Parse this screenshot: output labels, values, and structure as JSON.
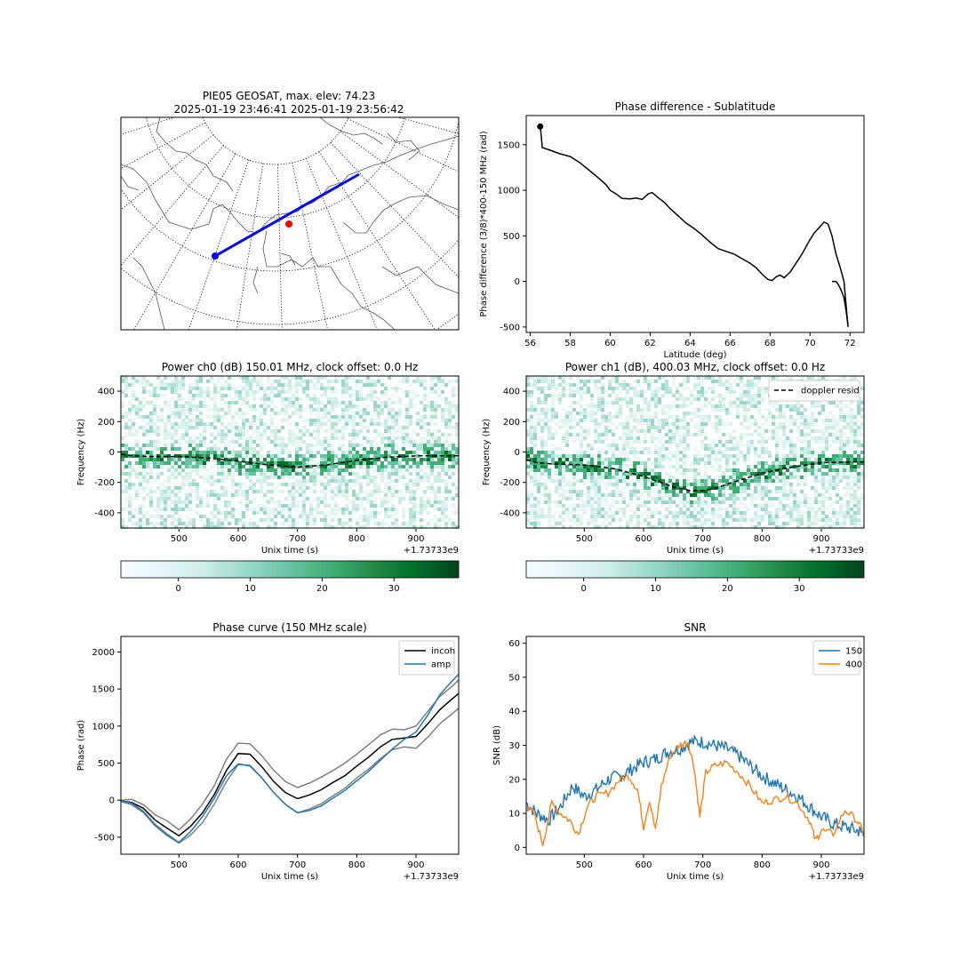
{
  "figure": {
    "map": {
      "title_line1": "PIE05 GEOSAT, max. elev: 74.23",
      "title_line2": "2025-01-19 23:46:41 2025-01-19 23:56:42"
    },
    "colorbar_ticks": [
      "0",
      "10",
      "20",
      "30"
    ],
    "colormap": [
      "#f7fcfd",
      "#e5f5f9",
      "#ccece6",
      "#99d8c9",
      "#66c2a4",
      "#41ae76",
      "#238b45",
      "#006d2c",
      "#00441b"
    ]
  },
  "chart_data": [
    {
      "type": "line",
      "title": "Phase difference - Sublatitude",
      "xlabel": "Latitude (deg)",
      "ylabel": "Phase difference (3/8)*400-150 MHz (rad)",
      "xlim": [
        55.8,
        72.7
      ],
      "ylim": [
        -560,
        1820
      ],
      "x_ticks": [
        56,
        58,
        60,
        62,
        64,
        66,
        68,
        70,
        72
      ],
      "y_ticks": [
        -500,
        0,
        500,
        1000,
        1500
      ],
      "grid": false,
      "series": [
        {
          "color": "#000000",
          "x": [
            56.5,
            56.55,
            56.6,
            57.0,
            57.5,
            58.0,
            58.5,
            59.0,
            59.5,
            59.8,
            60.0,
            60.3,
            60.6,
            61.0,
            61.3,
            61.6,
            61.9,
            62.1,
            62.4,
            62.7,
            63.0,
            63.4,
            63.8,
            64.2,
            64.6,
            65.0,
            65.4,
            65.8,
            66.2,
            66.6,
            67.0,
            67.3,
            67.6,
            67.9,
            68.1,
            68.3,
            68.5,
            68.7,
            69.0,
            69.3,
            69.6,
            69.9,
            70.2,
            70.5,
            70.7,
            70.9,
            71.1,
            71.3,
            71.5,
            71.7,
            71.9
          ],
          "y": [
            1700,
            1600,
            1470,
            1440,
            1400,
            1370,
            1300,
            1210,
            1120,
            1060,
            1000,
            960,
            910,
            905,
            915,
            900,
            960,
            975,
            920,
            870,
            800,
            720,
            640,
            580,
            510,
            430,
            360,
            330,
            300,
            250,
            200,
            150,
            80,
            20,
            10,
            50,
            70,
            40,
            100,
            200,
            300,
            420,
            530,
            600,
            650,
            630,
            500,
            300,
            160,
            0,
            -500
          ]
        },
        {
          "color": "#000000",
          "x": [
            71.1,
            71.3,
            71.4,
            71.5,
            71.6,
            71.7,
            71.8,
            71.9
          ],
          "y": [
            0,
            0,
            -30,
            -70,
            -120,
            -180,
            -320,
            -480
          ]
        }
      ],
      "marker": {
        "x": 56.5,
        "y": 1700
      }
    },
    {
      "type": "heatmap",
      "title": "Power ch0 (dB) 150.01 MHz, clock offset: 0.0 Hz",
      "xlabel": "Unix time (s)",
      "ylabel": "Frequency (Hz)",
      "x_offset_label": "+1.73733e9",
      "xlim": [
        402,
        972
      ],
      "ylim": [
        -500,
        500
      ],
      "x_ticks": [
        500,
        600,
        700,
        800,
        900
      ],
      "y_ticks": [
        -400,
        -200,
        0,
        200,
        400
      ],
      "colorbar_range": [
        -8,
        39
      ],
      "legend": "",
      "doppler_resid": {
        "x": [
          402,
          420,
          450,
          500,
          550,
          600,
          650,
          700,
          750,
          800,
          850,
          900,
          950,
          972
        ],
        "y": [
          -15,
          -25,
          -30,
          -30,
          -40,
          -60,
          -85,
          -100,
          -85,
          -55,
          -35,
          -25,
          -25,
          -25
        ]
      }
    },
    {
      "type": "heatmap",
      "title": "Power ch1 (dB), 400.03 MHz, clock offset: 0.0 Hz",
      "xlabel": "Unix time (s)",
      "ylabel": "Frequency (Hz)",
      "x_offset_label": "+1.73733e9",
      "xlim": [
        402,
        972
      ],
      "ylim": [
        -500,
        500
      ],
      "x_ticks": [
        500,
        600,
        700,
        800,
        900
      ],
      "y_ticks": [
        -400,
        -200,
        0,
        200,
        400
      ],
      "colorbar_range": [
        -8,
        39
      ],
      "legend": "doppler resid",
      "doppler_resid": {
        "x": [
          402,
          420,
          450,
          500,
          550,
          600,
          650,
          680,
          700,
          720,
          750,
          800,
          850,
          900,
          950,
          972
        ],
        "y": [
          -50,
          -70,
          -80,
          -85,
          -110,
          -160,
          -230,
          -255,
          -255,
          -240,
          -200,
          -140,
          -100,
          -70,
          -65,
          -65
        ]
      }
    },
    {
      "type": "line",
      "title": "Phase curve (150 MHz scale)",
      "xlabel": "Unix time (s)",
      "ylabel": "Phase (rad)",
      "x_offset_label": "+1.73733e9",
      "xlim": [
        402,
        972
      ],
      "ylim": [
        -730,
        2210
      ],
      "x_ticks": [
        500,
        600,
        700,
        800,
        900
      ],
      "y_ticks": [
        -500,
        0,
        500,
        1000,
        1500,
        2000
      ],
      "legend": "top-right",
      "series": [
        {
          "name": "",
          "color": "#808080",
          "x": [
            402,
            420,
            440,
            460,
            480,
            500,
            520,
            540,
            560,
            580,
            600,
            620,
            640,
            660,
            680,
            700,
            720,
            740,
            760,
            780,
            800,
            820,
            840,
            860,
            880,
            900,
            920,
            940,
            960,
            972
          ],
          "y": [
            0,
            10,
            -60,
            -200,
            -280,
            -400,
            -250,
            -50,
            200,
            550,
            770,
            760,
            600,
            400,
            250,
            170,
            230,
            310,
            400,
            500,
            620,
            750,
            880,
            960,
            950,
            1000,
            1200,
            1400,
            1530,
            1620
          ]
        },
        {
          "name": "",
          "color": "#808080",
          "x": [
            402,
            420,
            440,
            460,
            480,
            500,
            520,
            540,
            560,
            580,
            600,
            620,
            640,
            660,
            680,
            700,
            720,
            740,
            760,
            780,
            800,
            820,
            840,
            860,
            880,
            900,
            920,
            940,
            960,
            972
          ],
          "y": [
            -20,
            -60,
            -170,
            -350,
            -480,
            -580,
            -470,
            -300,
            -50,
            250,
            480,
            470,
            300,
            100,
            -60,
            -170,
            -120,
            -50,
            60,
            160,
            300,
            420,
            560,
            680,
            720,
            700,
            850,
            1030,
            1160,
            1240
          ]
        },
        {
          "name": "incoh",
          "color": "#000000",
          "x": [
            402,
            420,
            440,
            460,
            480,
            500,
            520,
            540,
            560,
            580,
            600,
            620,
            640,
            660,
            680,
            700,
            720,
            740,
            760,
            780,
            800,
            820,
            840,
            860,
            880,
            900,
            920,
            940,
            960,
            972
          ],
          "y": [
            -10,
            -30,
            -110,
            -270,
            -380,
            -480,
            -350,
            -170,
            80,
            400,
            630,
            620,
            450,
            250,
            100,
            20,
            70,
            140,
            240,
            330,
            460,
            580,
            720,
            820,
            840,
            860,
            1030,
            1220,
            1360,
            1440
          ]
        },
        {
          "name": "amp",
          "color": "#1f77b4",
          "x": [
            402,
            420,
            440,
            460,
            480,
            500,
            520,
            540,
            560,
            580,
            600,
            620,
            640,
            660,
            680,
            700,
            720,
            740,
            760,
            780,
            800,
            820,
            840,
            860,
            880,
            900,
            920,
            940,
            960,
            972
          ],
          "y": [
            -10,
            -40,
            -150,
            -330,
            -460,
            -570,
            -420,
            -220,
            30,
            330,
            490,
            460,
            300,
            100,
            -60,
            -170,
            -140,
            -80,
            30,
            130,
            260,
            390,
            540,
            690,
            820,
            920,
            1150,
            1420,
            1600,
            1700
          ]
        }
      ]
    },
    {
      "type": "line",
      "title": "SNR",
      "xlabel": "Unix time (s)",
      "ylabel": "SNR (dB)",
      "x_offset_label": "+1.73733e9",
      "xlim": [
        402,
        972
      ],
      "ylim": [
        -2,
        62
      ],
      "x_ticks": [
        500,
        600,
        700,
        800,
        900
      ],
      "y_ticks": [
        0,
        10,
        20,
        30,
        40,
        50,
        60
      ],
      "legend": "top-right",
      "series": [
        {
          "name": "150",
          "color": "#1f77b4",
          "x": [
            402,
            420,
            440,
            460,
            480,
            500,
            520,
            540,
            560,
            580,
            600,
            620,
            640,
            660,
            680,
            700,
            720,
            740,
            760,
            780,
            800,
            820,
            840,
            860,
            880,
            900,
            920,
            940,
            960,
            972
          ],
          "y": [
            13,
            10,
            8,
            12,
            18,
            15,
            17,
            20,
            21,
            23,
            25,
            26,
            28,
            29,
            31,
            31,
            30,
            29,
            27,
            24,
            21,
            19,
            17,
            15,
            12,
            9,
            7,
            6,
            5,
            4
          ]
        },
        {
          "name": "400",
          "color": "#ff7f0e",
          "x": [
            402,
            415,
            430,
            445,
            460,
            475,
            490,
            505,
            520,
            540,
            560,
            575,
            590,
            600,
            610,
            620,
            630,
            645,
            660,
            675,
            685,
            695,
            705,
            720,
            740,
            760,
            780,
            800,
            820,
            840,
            860,
            880,
            890,
            900,
            920,
            940,
            960,
            972
          ],
          "y": [
            12,
            10,
            1,
            13,
            10,
            8,
            4,
            12,
            15,
            16,
            20,
            21,
            17,
            6,
            14,
            5,
            18,
            27,
            30,
            31,
            24,
            9,
            22,
            24,
            25,
            22,
            18,
            13,
            14,
            15,
            13,
            8,
            2,
            5,
            4,
            11,
            8,
            4
          ]
        }
      ]
    }
  ]
}
